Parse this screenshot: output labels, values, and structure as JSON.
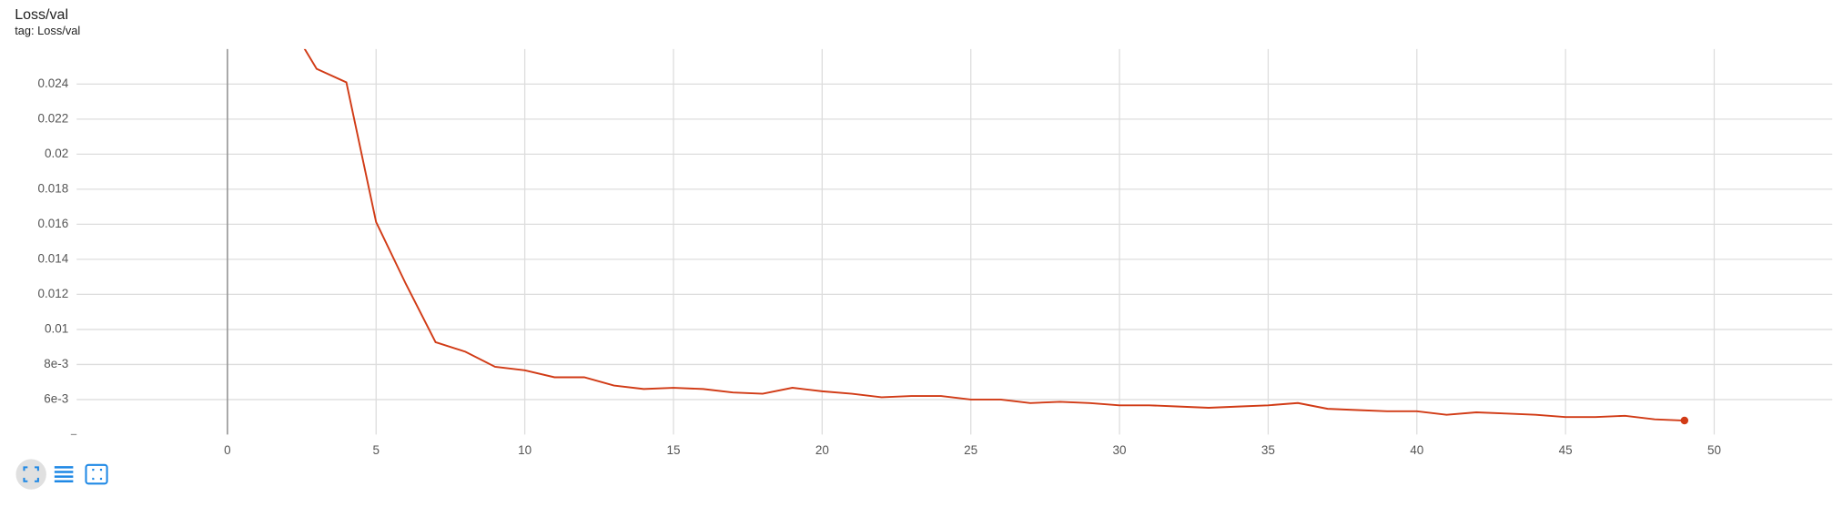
{
  "chart_data": {
    "type": "line",
    "title": "Loss/val",
    "subtitle": "tag: Loss/val",
    "x": [
      2,
      3,
      4,
      5,
      6,
      7,
      8,
      9,
      10,
      11,
      12,
      13,
      14,
      15,
      16,
      17,
      18,
      19,
      20,
      21,
      22,
      23,
      24,
      25,
      26,
      27,
      28,
      29,
      30,
      31,
      32,
      33,
      34,
      35,
      36,
      37,
      38,
      39,
      40,
      41,
      42,
      43,
      44,
      45,
      46,
      47,
      48,
      49
    ],
    "series": [
      {
        "name": "Loss/val",
        "color": "#d13b16",
        "values": [
          0.0277,
          0.02487,
          0.0241,
          0.01613,
          0.0126,
          0.00927,
          0.00873,
          0.00787,
          0.00767,
          0.00727,
          0.00727,
          0.0068,
          0.0066,
          0.00667,
          0.0066,
          0.0064,
          0.00633,
          0.00667,
          0.00647,
          0.00633,
          0.00613,
          0.0062,
          0.0062,
          0.006,
          0.006,
          0.0058,
          0.00587,
          0.0058,
          0.00567,
          0.00567,
          0.0056,
          0.00553,
          0.0056,
          0.00567,
          0.0058,
          0.00547,
          0.0054,
          0.00533,
          0.00533,
          0.00513,
          0.00527,
          0.0052,
          0.00513,
          0.005,
          0.005,
          0.00507,
          0.00487,
          0.0048
        ]
      }
    ],
    "xlim": [
      -5.07,
      53.97
    ],
    "xticks": [
      0,
      5,
      10,
      15,
      20,
      25,
      30,
      35,
      40,
      45,
      50
    ],
    "ylim": [
      0.004,
      0.026
    ],
    "yticks": [
      {
        "value": 0.006,
        "label": "6e-3"
      },
      {
        "value": 0.008,
        "label": "8e-3"
      },
      0.01,
      0.012,
      0.014,
      0.016,
      0.018,
      0.02,
      0.022,
      0.024
    ],
    "grid": true
  }
}
